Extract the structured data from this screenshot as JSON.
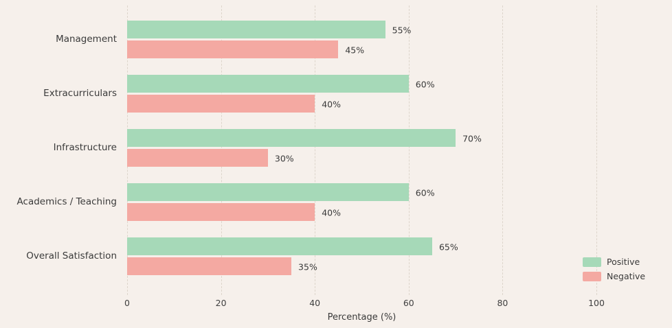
{
  "chart_data": {
    "type": "bar",
    "orientation": "horizontal",
    "title": "",
    "categories": [
      "Management",
      "Extracurriculars",
      "Infrastructure",
      "Academics / Teaching",
      "Overall Satisfaction"
    ],
    "series": [
      {
        "name": "Positive",
        "color": "#a6d9b8",
        "values": [
          55,
          60,
          70,
          60,
          65
        ],
        "labels": [
          "55%",
          "60%",
          "70%",
          "60%",
          "65%"
        ]
      },
      {
        "name": "Negative",
        "color": "#f4a9a2",
        "values": [
          45,
          40,
          30,
          40,
          35
        ],
        "labels": [
          "45%",
          "40%",
          "30%",
          "40%",
          "35%"
        ]
      }
    ],
    "xlabel": "Percentage (%)",
    "ylabel": "",
    "xticks": [
      0,
      20,
      40,
      60,
      80,
      100
    ],
    "xlim": [
      0,
      100
    ],
    "grid": "dashed-vertical",
    "legend_position": "lower-right",
    "colors": {
      "background": "#f6f0eb",
      "text": "#3a3a3a",
      "grid": "#ddd5cb"
    }
  }
}
